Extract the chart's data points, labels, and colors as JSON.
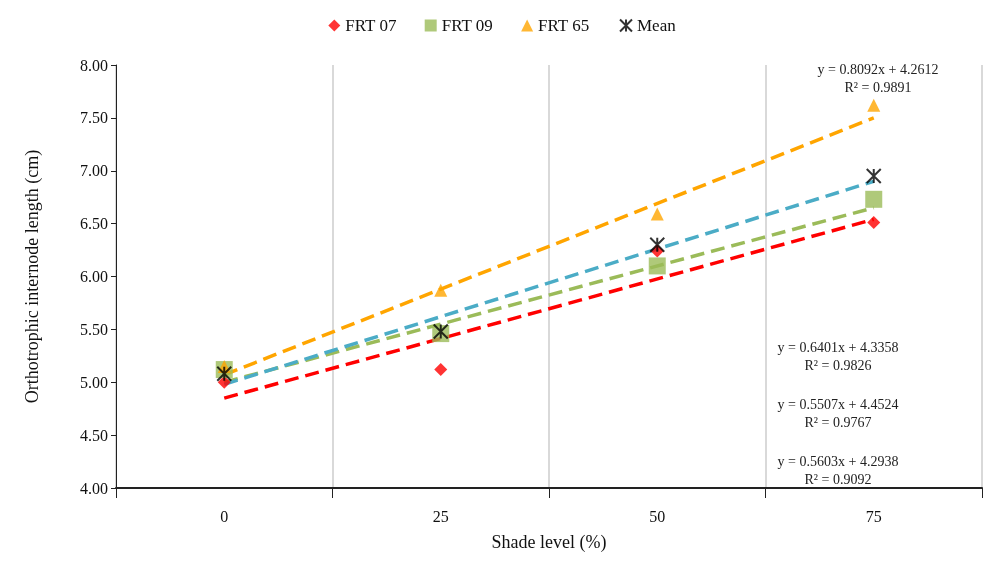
{
  "chart_data": {
    "type": "scatter",
    "xlabel": "Shade level (%)",
    "ylabel": "Orthotrophic internode length (cm)",
    "categories": [
      "0",
      "25",
      "50",
      "75"
    ],
    "series": [
      {
        "name": "FRT 07",
        "color": "#ff0000",
        "marker": "diamond",
        "values": [
          5.0,
          5.12,
          6.24,
          6.51
        ]
      },
      {
        "name": "FRT 09",
        "color": "#9bbb59",
        "marker": "square",
        "values": [
          5.12,
          5.46,
          6.1,
          6.73
        ]
      },
      {
        "name": "FRT 65",
        "color": "#ffa500",
        "marker": "triangle",
        "values": [
          5.15,
          5.87,
          6.59,
          7.62
        ]
      },
      {
        "name": "Mean",
        "color": "#000000",
        "marker": "cross",
        "values": [
          5.08,
          5.48,
          6.3,
          6.95
        ]
      },
      {
        "type": "line",
        "color": "#ff0000",
        "line_style": "dashed",
        "marker": "none",
        "x": [
          "0",
          "75"
        ],
        "values": [
          4.85,
          6.54
        ]
      },
      {
        "type": "line",
        "color": "#9bbb59",
        "line_style": "dashed",
        "marker": "none",
        "x": [
          "0",
          "75"
        ],
        "values": [
          5.0,
          6.65
        ]
      },
      {
        "type": "line",
        "color": "#ffa500",
        "line_style": "dashed",
        "marker": "none",
        "x": [
          "0",
          "75"
        ],
        "values": [
          5.07,
          7.5
        ]
      },
      {
        "type": "line",
        "color": "#4bacc6",
        "line_style": "dashed",
        "marker": "none",
        "x": [
          "0",
          "75"
        ],
        "values": [
          4.98,
          6.9
        ]
      }
    ],
    "ylim": [
      4,
      8
    ],
    "yticks": [
      {
        "value": 4,
        "label": "4.00"
      },
      {
        "value": 4.5,
        "label": "4.50"
      },
      {
        "value": 5,
        "label": "5.00"
      },
      {
        "value": 5.5,
        "label": "5.50"
      },
      {
        "value": 6,
        "label": "6.00"
      },
      {
        "value": 6.5,
        "label": "6.50"
      },
      {
        "value": 7,
        "label": "7.00"
      },
      {
        "value": 7.5,
        "label": "7.50"
      },
      {
        "value": 8,
        "label": "8.00"
      }
    ],
    "grid": "x",
    "legend": "top",
    "annotations": [
      "y = 0.8092x + 4.2612\nR² = 0.9891",
      "y = 0.6401x + 4.3358\nR² = 0.9826",
      "y = 0.5507x + 4.4524\nR² = 0.9767",
      "y = 0.5603x + 4.2938\nR² = 0.9092"
    ]
  }
}
